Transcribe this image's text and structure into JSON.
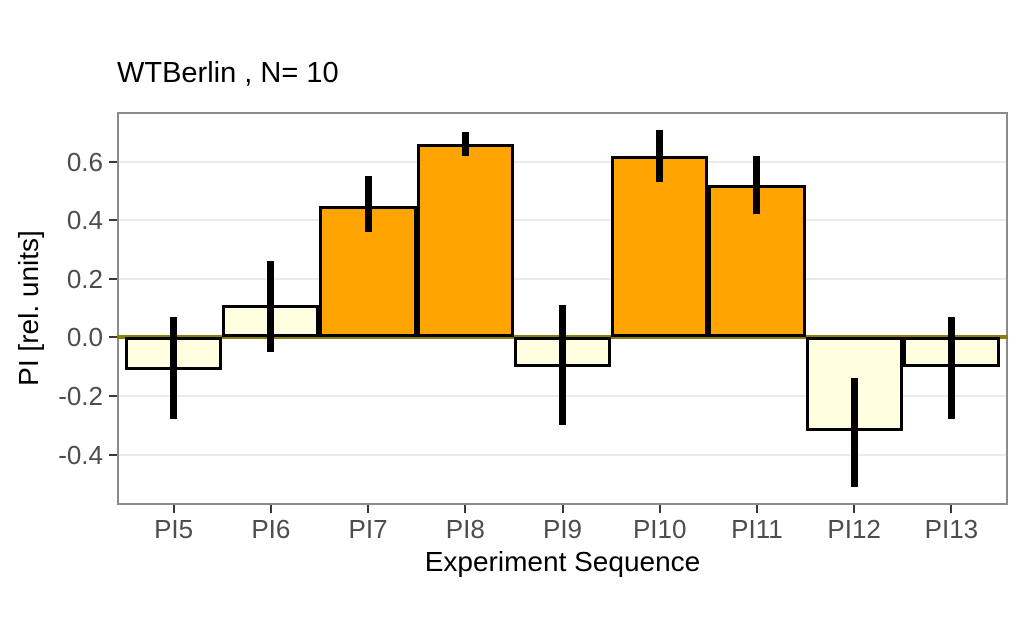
{
  "chart_data": {
    "type": "bar",
    "title": "WTBerlin , N= 10",
    "xlabel": "Experiment Sequence",
    "ylabel": "PI [rel. units]",
    "categories": [
      "PI5",
      "PI6",
      "PI7",
      "PI8",
      "PI9",
      "PI10",
      "PI11",
      "PI12",
      "PI13"
    ],
    "series": [
      {
        "name": "PI",
        "values": [
          -0.11,
          0.11,
          0.45,
          0.66,
          -0.1,
          0.62,
          0.52,
          -0.32,
          -0.1
        ],
        "error_low": [
          -0.28,
          -0.05,
          0.36,
          0.62,
          -0.3,
          0.53,
          0.42,
          -0.51,
          -0.28
        ],
        "error_high": [
          0.07,
          0.26,
          0.55,
          0.7,
          0.11,
          0.71,
          0.62,
          -0.14,
          0.07
        ]
      }
    ],
    "bar_colors": [
      "#fffee0",
      "#fffee0",
      "#ffa400",
      "#ffa400",
      "#fffee0",
      "#ffa400",
      "#ffa400",
      "#fffee0",
      "#fffee0"
    ],
    "bar_outline_color": "#000000",
    "error_bar_color": "#000000",
    "yticks": [
      0.6,
      0.4,
      0.2,
      0.0,
      -0.2,
      -0.4
    ],
    "ytick_labels": [
      "0.6",
      "0.4",
      "0.2",
      "0.0",
      "-0.2",
      "-0.4"
    ],
    "ylim": [
      -0.572,
      0.77
    ],
    "zero_line_color": "#8b8000",
    "grid": "horizontal-major-only",
    "legend": "none",
    "panel_border_color": "#8b8b8b",
    "gridline_color": "#ebebeb",
    "tick_text_color": "#4d4d4d"
  }
}
